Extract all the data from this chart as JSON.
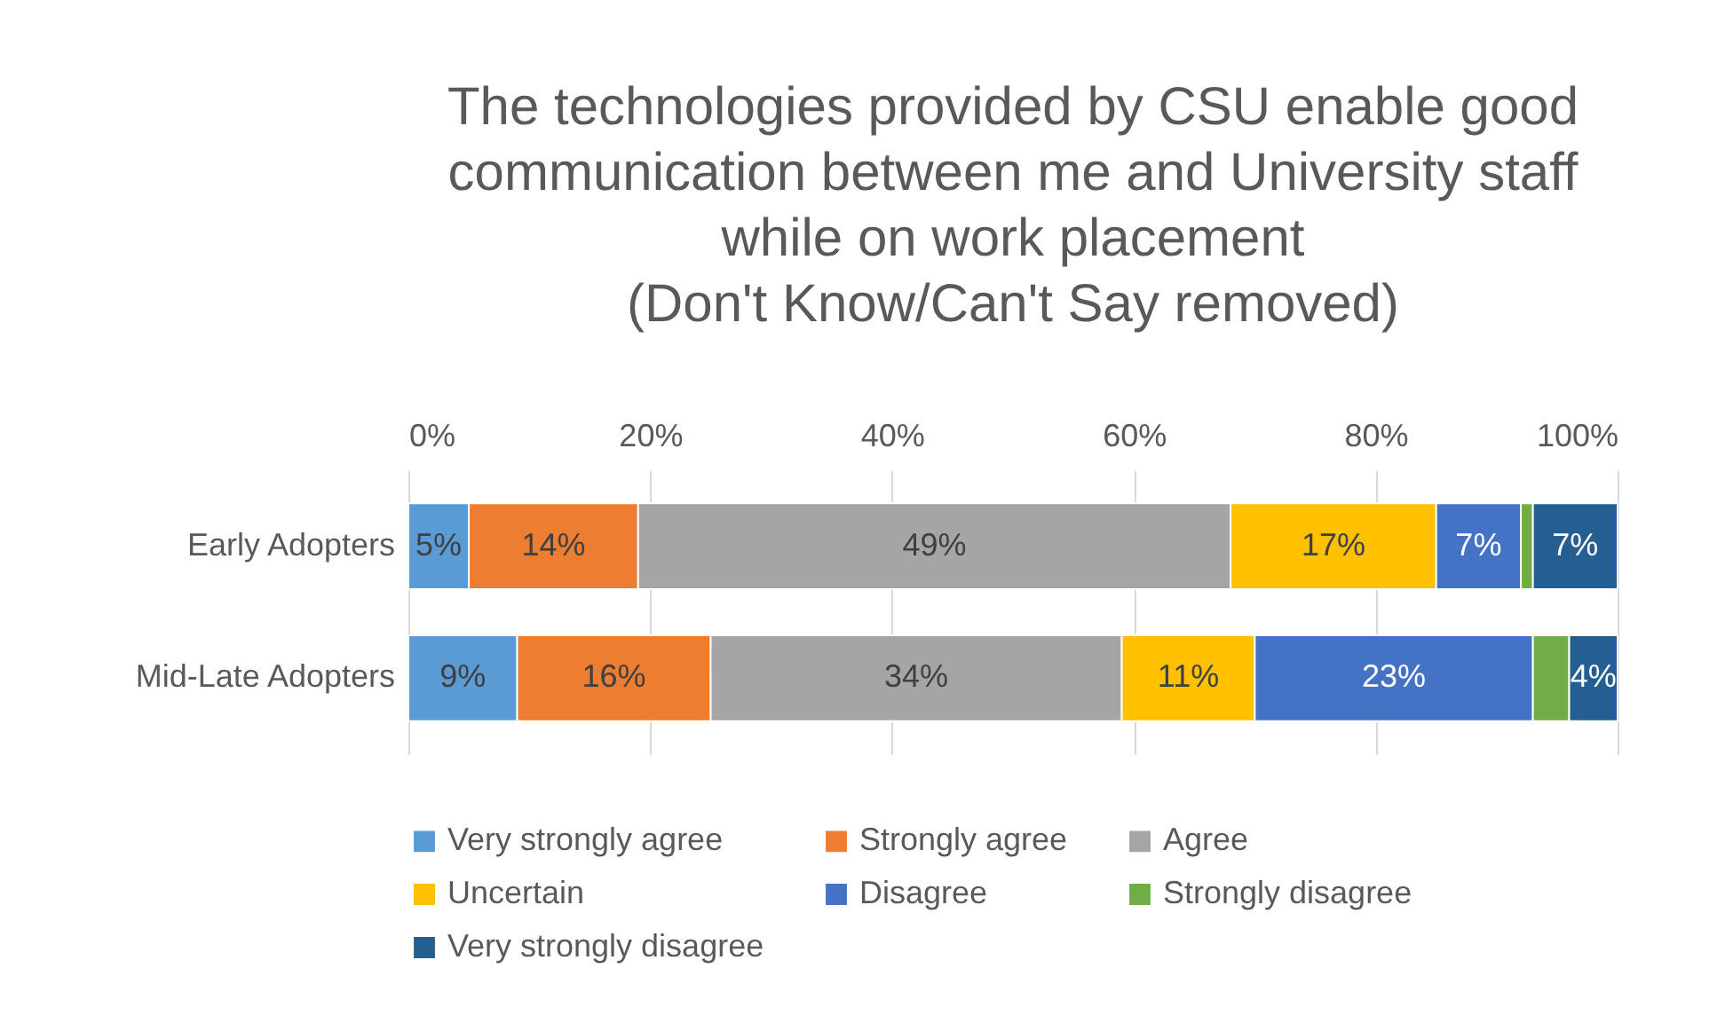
{
  "chart_data": {
    "type": "bar",
    "orientation": "horizontal",
    "stacked": true,
    "title": "The technologies provided by CSU enable good\ncommunication between me and University staff\nwhile on work placement\n(Don't Know/Can't Say removed)",
    "categories": [
      "Early Adopters",
      "Mid-Late Adopters"
    ],
    "series": [
      {
        "name": "Very strongly agree",
        "color": "#5b9bd5",
        "values": [
          5,
          9
        ],
        "value_labels": [
          "5%",
          "9%"
        ]
      },
      {
        "name": "Strongly agree",
        "color": "#ed7d31",
        "values": [
          14,
          16
        ],
        "value_labels": [
          "14%",
          "16%"
        ]
      },
      {
        "name": "Agree",
        "color": "#a5a5a5",
        "values": [
          49,
          34
        ],
        "value_labels": [
          "49%",
          "34%"
        ]
      },
      {
        "name": "Uncertain",
        "color": "#ffc000",
        "values": [
          17,
          11
        ],
        "value_labels": [
          "17%",
          "11%"
        ]
      },
      {
        "name": "Disagree",
        "color": "#4472c4",
        "values": [
          7,
          23
        ],
        "value_labels": [
          "7%",
          "23%"
        ]
      },
      {
        "name": "Strongly disagree",
        "color": "#70ad47",
        "values": [
          1,
          3
        ],
        "value_labels": [
          null,
          null
        ]
      },
      {
        "name": "Very strongly disagree",
        "color": "#255e91",
        "values": [
          7,
          4
        ],
        "value_labels": [
          "7%",
          "4%"
        ]
      }
    ],
    "xlim": [
      0,
      100
    ],
    "xticks": [
      {
        "value": 0,
        "label": "0%"
      },
      {
        "value": 20,
        "label": "20%"
      },
      {
        "value": 40,
        "label": "40%"
      },
      {
        "value": 60,
        "label": "60%"
      },
      {
        "value": 80,
        "label": "80%"
      },
      {
        "value": 100,
        "label": "100%"
      }
    ],
    "grid": "x",
    "legend": "bottom"
  }
}
